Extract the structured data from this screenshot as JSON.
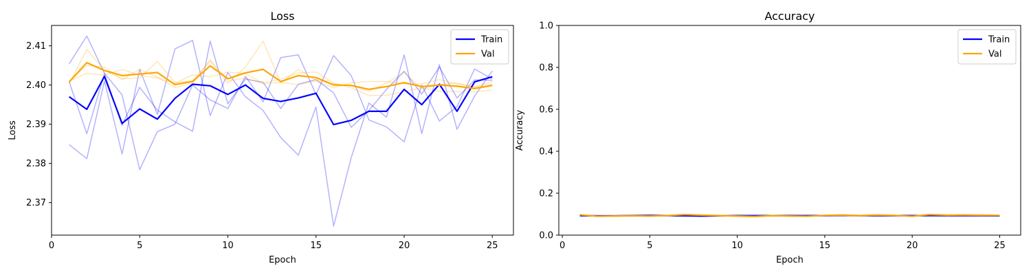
{
  "chart_data": [
    {
      "type": "line",
      "title": "Loss",
      "xlabel": "Epoch",
      "ylabel": "Loss",
      "xlim": [
        0,
        26.2
      ],
      "ylim": [
        2.3617,
        2.4152
      ],
      "xticks": [
        0,
        5,
        10,
        15,
        20,
        25
      ],
      "yticks": [
        2.37,
        2.38,
        2.39,
        2.4,
        2.41
      ],
      "ytick_labels": [
        "2.37",
        "2.38",
        "2.39",
        "2.40",
        "2.41"
      ],
      "legend": [
        "Train",
        "Val"
      ],
      "legend_position": "top-right",
      "grid": false,
      "x": [
        1,
        2,
        3,
        4,
        5,
        6,
        7,
        8,
        9,
        10,
        11,
        12,
        13,
        14,
        15,
        16,
        17,
        18,
        19,
        20,
        21,
        22,
        23,
        24,
        25
      ],
      "series": [
        {
          "name": "Train",
          "role": "mean",
          "color": "#0000ff",
          "values": [
            2.397,
            2.3938,
            2.4022,
            2.3902,
            2.3939,
            2.3913,
            2.3966,
            2.4002,
            2.3998,
            2.3976,
            2.4,
            2.3966,
            2.3958,
            2.3967,
            2.3979,
            2.3899,
            2.391,
            2.3933,
            2.3933,
            2.3989,
            2.395,
            2.4002,
            2.3933,
            2.4008,
            2.4021
          ]
        },
        {
          "role": "run",
          "group": "Train",
          "color": "#0000ff",
          "values": [
            2.4054,
            2.4125,
            2.403,
            2.3975,
            2.3784,
            2.3881,
            2.39,
            2.4,
            2.3962,
            2.394,
            2.4022,
            2.3957,
            2.407,
            2.4077,
            2.3976,
            2.4075,
            2.4024,
            2.3911,
            2.3893,
            2.3855,
            2.4,
            2.3908,
            2.3945,
            2.4041,
            2.4015
          ]
        },
        {
          "role": "run",
          "group": "Train",
          "color": "#0000ff",
          "values": [
            2.3848,
            2.3812,
            2.401,
            2.3824,
            2.404,
            2.3925,
            2.4092,
            2.4114,
            2.3922,
            2.4032,
            2.397,
            2.3935,
            2.3866,
            2.3821,
            2.3944,
            2.364,
            2.3815,
            2.3954,
            2.3918,
            2.4077,
            2.3876,
            2.4052,
            2.3887,
            2.3972,
            2.4036
          ]
        },
        {
          "role": "run",
          "group": "Train",
          "color": "#0000ff",
          "values": [
            2.4008,
            2.3876,
            2.4029,
            2.3897,
            2.3994,
            2.3936,
            2.3906,
            2.3882,
            2.4112,
            2.3952,
            2.4015,
            2.4007,
            2.394,
            2.4002,
            2.4014,
            2.398,
            2.3892,
            2.3935,
            2.3989,
            2.4035,
            2.3977,
            2.4046,
            2.3967,
            2.4013,
            2.4012
          ]
        },
        {
          "name": "Val",
          "role": "mean",
          "color": "#ffa500",
          "values": [
            2.4008,
            2.4057,
            2.4037,
            2.4024,
            2.4028,
            2.4032,
            2.4001,
            2.4009,
            2.4049,
            2.4016,
            2.4031,
            2.404,
            2.4009,
            2.4024,
            2.4019,
            2.4,
            2.3999,
            2.3989,
            2.3996,
            2.4006,
            2.3996,
            2.4,
            2.3997,
            2.3991,
            2.3999
          ]
        },
        {
          "role": "run",
          "group": "Val",
          "color": "#ffa500",
          "values": [
            2.4003,
            2.4091,
            2.4038,
            2.4016,
            2.4018,
            2.406,
            2.4006,
            2.4011,
            2.4062,
            2.4004,
            2.4046,
            2.4112,
            2.4005,
            2.404,
            2.4012,
            2.4003,
            2.3998,
            2.3984,
            2.4005,
            2.4032,
            2.3991,
            2.4001,
            2.4005,
            2.3994,
            2.4002
          ]
        },
        {
          "role": "run",
          "group": "Val",
          "color": "#ffa500",
          "values": [
            2.401,
            2.403,
            2.4025,
            2.404,
            2.4025,
            2.4018,
            2.4004,
            2.4026,
            2.4021,
            2.4033,
            2.4029,
            2.4005,
            2.4015,
            2.4031,
            2.4033,
            2.4005,
            2.3993,
            2.3973,
            2.3974,
            2.3983,
            2.3993,
            2.3984,
            2.3983,
            2.3983,
            2.3987
          ]
        },
        {
          "role": "run",
          "group": "Val",
          "color": "#ffa500",
          "values": [
            2.401,
            2.405,
            2.4046,
            2.4014,
            2.404,
            2.402,
            2.3994,
            2.4004,
            2.4064,
            2.401,
            2.4018,
            2.4003,
            2.4007,
            2.4001,
            2.401,
            2.3993,
            2.4006,
            2.4009,
            2.4009,
            2.4003,
            2.4003,
            2.4014,
            2.4002,
            2.3996,
            2.4008
          ]
        }
      ]
    },
    {
      "type": "line",
      "title": "Accuracy",
      "xlabel": "Epoch",
      "ylabel": "Accuracy",
      "xlim": [
        -0.2,
        26.2
      ],
      "ylim": [
        0.0,
        1.0
      ],
      "xticks": [
        0,
        5,
        10,
        15,
        20,
        25
      ],
      "yticks": [
        0.0,
        0.2,
        0.4,
        0.6,
        0.8,
        1.0
      ],
      "ytick_labels": [
        "0.0",
        "0.2",
        "0.4",
        "0.6",
        "0.8",
        "1.0"
      ],
      "legend": [
        "Train",
        "Val"
      ],
      "legend_position": "top-right",
      "grid": false,
      "x": [
        1,
        2,
        3,
        4,
        5,
        6,
        7,
        8,
        9,
        10,
        11,
        12,
        13,
        14,
        15,
        16,
        17,
        18,
        19,
        20,
        21,
        22,
        23,
        24,
        25
      ],
      "series": [
        {
          "name": "Train",
          "role": "mean",
          "color": "#0000ff",
          "values": [
            0.093,
            0.092,
            0.092,
            0.093,
            0.094,
            0.093,
            0.092,
            0.091,
            0.092,
            0.093,
            0.093,
            0.093,
            0.093,
            0.093,
            0.093,
            0.094,
            0.093,
            0.093,
            0.093,
            0.093,
            0.093,
            0.093,
            0.093,
            0.093,
            0.092
          ]
        },
        {
          "role": "run",
          "group": "Train",
          "color": "#0000ff",
          "values": [
            0.092,
            0.091,
            0.092,
            0.092,
            0.093,
            0.092,
            0.091,
            0.09,
            0.091,
            0.092,
            0.092,
            0.093,
            0.092,
            0.092,
            0.092,
            0.093,
            0.092,
            0.092,
            0.092,
            0.092,
            0.093,
            0.092,
            0.092,
            0.092,
            0.091
          ]
        },
        {
          "role": "run",
          "group": "Train",
          "color": "#0000ff",
          "values": [
            0.094,
            0.093,
            0.093,
            0.094,
            0.095,
            0.094,
            0.093,
            0.092,
            0.093,
            0.094,
            0.094,
            0.094,
            0.094,
            0.094,
            0.094,
            0.095,
            0.094,
            0.094,
            0.094,
            0.094,
            0.094,
            0.094,
            0.094,
            0.094,
            0.093
          ]
        },
        {
          "name": "Val",
          "role": "mean",
          "color": "#ffa500",
          "values": [
            0.097,
            0.09,
            0.091,
            0.092,
            0.091,
            0.093,
            0.098,
            0.095,
            0.093,
            0.091,
            0.089,
            0.093,
            0.091,
            0.09,
            0.094,
            0.096,
            0.093,
            0.096,
            0.094,
            0.09,
            0.098,
            0.095,
            0.096,
            0.095,
            0.094
          ]
        },
        {
          "role": "run",
          "group": "Val",
          "color": "#ffa500",
          "values": [
            0.098,
            0.089,
            0.09,
            0.091,
            0.09,
            0.094,
            0.099,
            0.096,
            0.092,
            0.09,
            0.088,
            0.094,
            0.09,
            0.089,
            0.095,
            0.097,
            0.092,
            0.097,
            0.095,
            0.089,
            0.099,
            0.096,
            0.097,
            0.096,
            0.095
          ]
        },
        {
          "role": "run",
          "group": "Val",
          "color": "#ffa500",
          "values": [
            0.096,
            0.091,
            0.092,
            0.093,
            0.092,
            0.092,
            0.097,
            0.094,
            0.094,
            0.092,
            0.09,
            0.092,
            0.092,
            0.091,
            0.093,
            0.095,
            0.094,
            0.095,
            0.093,
            0.091,
            0.097,
            0.094,
            0.095,
            0.094,
            0.093
          ]
        }
      ]
    }
  ]
}
